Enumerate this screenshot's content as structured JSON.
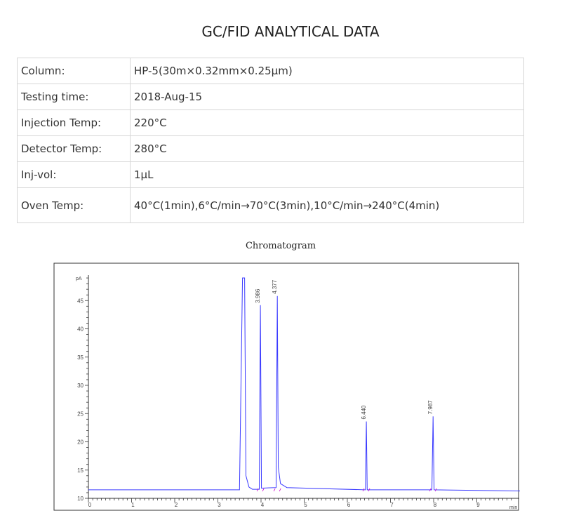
{
  "title": "GC/FID ANALYTICAL DATA",
  "specs": [
    {
      "label": "Column:",
      "value": "HP-5(30m×0.32mm×0.25μm)"
    },
    {
      "label": "Testing time:",
      "value": "2018-Aug-15"
    },
    {
      "label": "Injection Temp:",
      "value": "220°C"
    },
    {
      "label": "Detector Temp:",
      "value": "280°C"
    },
    {
      "label": "Inj-vol:",
      "value": "1μL"
    },
    {
      "label": "Oven Temp:",
      "value": "40°C(1min),6°C/min→70°C(3min),10°C/min→240°C(4min)"
    }
  ],
  "chart_caption": "Chromatogram",
  "chart_data": {
    "type": "line",
    "title": "Chromatogram",
    "xlabel": "min",
    "ylabel": "pA",
    "xlim": [
      0,
      10
    ],
    "ylim": [
      10,
      49
    ],
    "x_ticks": [
      0,
      1,
      2,
      3,
      4,
      5,
      6,
      7,
      8,
      9
    ],
    "y_ticks": [
      10,
      15,
      20,
      25,
      30,
      35,
      40,
      45
    ],
    "baseline": 11.5,
    "series": [
      {
        "values": [
          [
            0.0,
            11.5
          ],
          [
            3.5,
            11.5
          ],
          [
            3.57,
            49.0
          ],
          [
            3.62,
            49.0
          ],
          [
            3.65,
            14.0
          ],
          [
            3.72,
            12.0
          ],
          [
            3.8,
            11.6
          ],
          [
            3.96,
            11.6
          ],
          [
            3.986,
            44.2
          ],
          [
            4.01,
            11.8
          ],
          [
            4.35,
            11.9
          ],
          [
            4.377,
            45.8
          ],
          [
            4.4,
            15.5
          ],
          [
            4.45,
            12.6
          ],
          [
            4.6,
            11.9
          ],
          [
            6.42,
            11.5
          ],
          [
            6.44,
            23.6
          ],
          [
            6.46,
            11.5
          ],
          [
            7.96,
            11.5
          ],
          [
            7.987,
            24.5
          ],
          [
            8.01,
            11.5
          ],
          [
            10.0,
            11.3
          ]
        ]
      }
    ],
    "peaks": [
      {
        "rt": "3.986",
        "x": 3.986,
        "height": 44.2
      },
      {
        "rt": "4.377",
        "x": 4.377,
        "height": 45.8
      },
      {
        "rt": "6.440",
        "x": 6.44,
        "height": 23.6
      },
      {
        "rt": "7.987",
        "x": 7.987,
        "height": 24.5
      }
    ],
    "colors": {
      "trace": "#3b3bff",
      "marker": "#cc00cc",
      "axis": "#333333",
      "tick": "#444444"
    }
  }
}
